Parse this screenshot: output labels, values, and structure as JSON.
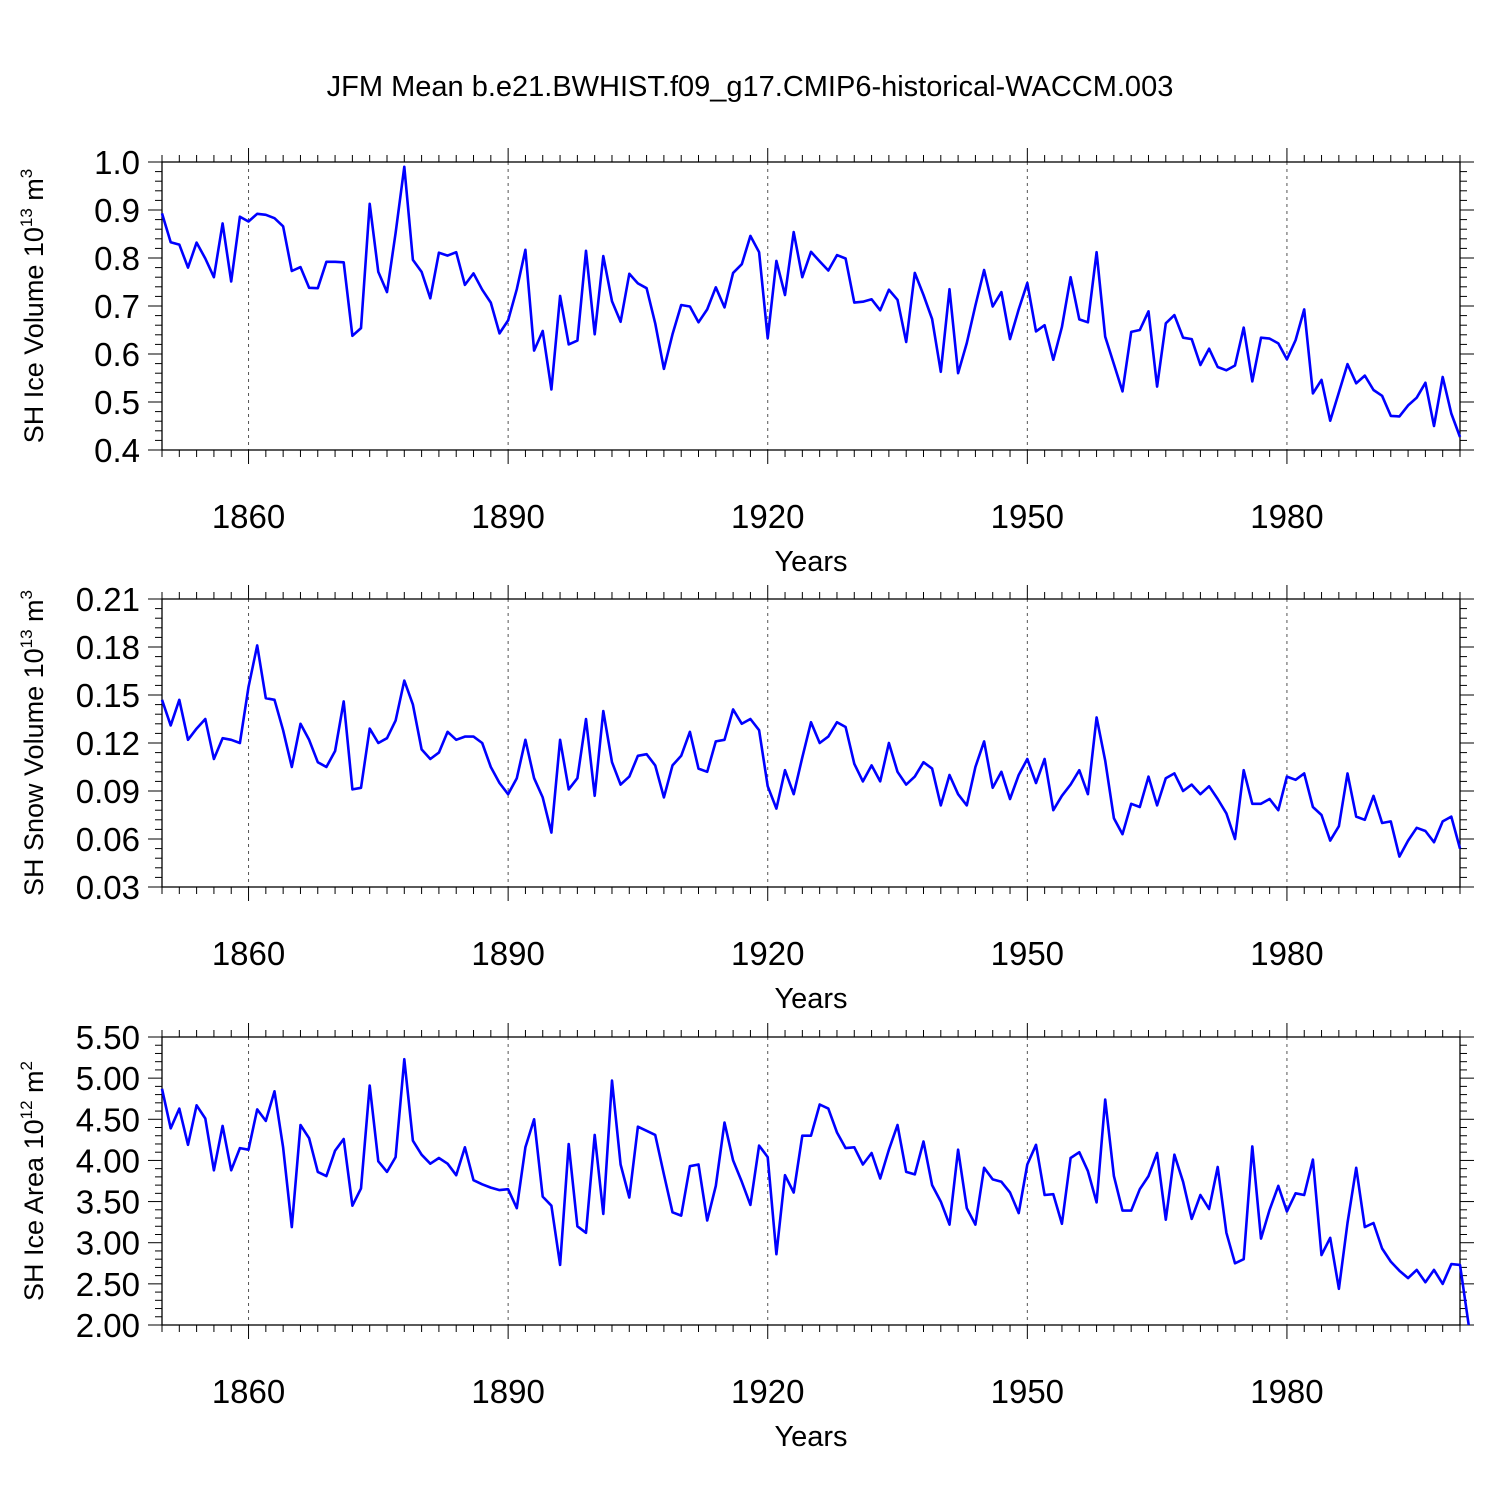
{
  "title": "JFM Mean b.e21.BWHIST.f09_g17.CMIP6-historical-WACCM.003",
  "colors": {
    "line": "#0000ff",
    "axis": "#000000",
    "grid": "#555555"
  },
  "chart_data": [
    {
      "type": "line",
      "ylabel": {
        "text": "SH Ice Volume 10",
        "exp": "13",
        "unit": " m",
        "unit_exp": "3"
      },
      "xlabel": "Years",
      "xlim": [
        1850,
        2000
      ],
      "ylim": [
        0.4,
        1.0
      ],
      "yticks": [
        "0.4",
        "0.5",
        "0.6",
        "0.7",
        "0.8",
        "0.9",
        "1.0"
      ],
      "xticks": [
        "1860",
        "1890",
        "1920",
        "1950",
        "1980"
      ],
      "grid": "x-dashed",
      "series": [
        {
          "x_start": 1850,
          "values": [
            0.893,
            0.833,
            0.828,
            0.78,
            0.832,
            0.799,
            0.76,
            0.872,
            0.751,
            0.886,
            0.876,
            0.892,
            0.89,
            0.883,
            0.866,
            0.773,
            0.781,
            0.738,
            0.737,
            0.792,
            0.792,
            0.791,
            0.638,
            0.654,
            0.913,
            0.771,
            0.729,
            0.852,
            0.99,
            0.796,
            0.771,
            0.716,
            0.811,
            0.805,
            0.812,
            0.744,
            0.768,
            0.734,
            0.707,
            0.643,
            0.67,
            0.735,
            0.817,
            0.607,
            0.648,
            0.526,
            0.721,
            0.62,
            0.628,
            0.815,
            0.641,
            0.804,
            0.71,
            0.667,
            0.767,
            0.747,
            0.737,
            0.664,
            0.569,
            0.641,
            0.702,
            0.699,
            0.666,
            0.693,
            0.739,
            0.697,
            0.769,
            0.787,
            0.846,
            0.812,
            0.633,
            0.794,
            0.723,
            0.854,
            0.76,
            0.813,
            0.793,
            0.774,
            0.806,
            0.799,
            0.707,
            0.709,
            0.714,
            0.691,
            0.734,
            0.713,
            0.625,
            0.769,
            0.723,
            0.673,
            0.563,
            0.735,
            0.56,
            0.623,
            0.701,
            0.775,
            0.699,
            0.729,
            0.631,
            0.693,
            0.748,
            0.647,
            0.66,
            0.588,
            0.656,
            0.76,
            0.672,
            0.666,
            0.812,
            0.636,
            0.579,
            0.522,
            0.646,
            0.65,
            0.689,
            0.532,
            0.664,
            0.681,
            0.634,
            0.631,
            0.577,
            0.611,
            0.573,
            0.566,
            0.576,
            0.655,
            0.543,
            0.634,
            0.632,
            0.622,
            0.589,
            0.629,
            0.693,
            0.518,
            0.546,
            0.461,
            0.52,
            0.579,
            0.539,
            0.555,
            0.525,
            0.513,
            0.471,
            0.47,
            0.493,
            0.509,
            0.54,
            0.45,
            0.552,
            0.476,
            0.427
          ]
        }
      ]
    },
    {
      "type": "line",
      "ylabel": {
        "text": "SH Snow Volume 10",
        "exp": "13",
        "unit": " m",
        "unit_exp": "3"
      },
      "xlabel": "Years",
      "xlim": [
        1850,
        2000
      ],
      "ylim": [
        0.03,
        0.21
      ],
      "yticks": [
        "0.03",
        "0.06",
        "0.09",
        "0.12",
        "0.15",
        "0.18",
        "0.21"
      ],
      "xticks": [
        "1860",
        "1890",
        "1920",
        "1950",
        "1980"
      ],
      "grid": "x-dashed",
      "series": [
        {
          "x_start": 1850,
          "values": [
            0.147,
            0.131,
            0.147,
            0.122,
            0.129,
            0.135,
            0.11,
            0.123,
            0.122,
            0.12,
            0.155,
            0.181,
            0.148,
            0.147,
            0.128,
            0.105,
            0.132,
            0.122,
            0.108,
            0.105,
            0.115,
            0.146,
            0.091,
            0.092,
            0.129,
            0.12,
            0.123,
            0.134,
            0.159,
            0.144,
            0.116,
            0.11,
            0.114,
            0.127,
            0.122,
            0.124,
            0.124,
            0.12,
            0.105,
            0.095,
            0.088,
            0.098,
            0.122,
            0.098,
            0.086,
            0.064,
            0.122,
            0.091,
            0.098,
            0.135,
            0.087,
            0.14,
            0.108,
            0.094,
            0.099,
            0.112,
            0.113,
            0.106,
            0.086,
            0.106,
            0.112,
            0.127,
            0.104,
            0.102,
            0.121,
            0.122,
            0.141,
            0.132,
            0.135,
            0.128,
            0.093,
            0.079,
            0.103,
            0.088,
            0.111,
            0.133,
            0.12,
            0.124,
            0.133,
            0.13,
            0.107,
            0.096,
            0.106,
            0.096,
            0.12,
            0.102,
            0.094,
            0.099,
            0.108,
            0.104,
            0.081,
            0.1,
            0.088,
            0.081,
            0.105,
            0.121,
            0.092,
            0.102,
            0.085,
            0.1,
            0.11,
            0.095,
            0.11,
            0.078,
            0.087,
            0.094,
            0.103,
            0.088,
            0.136,
            0.109,
            0.073,
            0.063,
            0.082,
            0.08,
            0.099,
            0.081,
            0.098,
            0.101,
            0.09,
            0.094,
            0.088,
            0.093,
            0.085,
            0.076,
            0.06,
            0.103,
            0.082,
            0.082,
            0.085,
            0.078,
            0.099,
            0.097,
            0.101,
            0.08,
            0.075,
            0.059,
            0.068,
            0.101,
            0.074,
            0.072,
            0.087,
            0.07,
            0.071,
            0.049,
            0.059,
            0.067,
            0.065,
            0.058,
            0.071,
            0.074,
            0.054
          ]
        }
      ]
    },
    {
      "type": "line",
      "ylabel": {
        "text": "SH Ice Area 10",
        "exp": "12",
        "unit": " m",
        "unit_exp": "2"
      },
      "xlabel": "Years",
      "xlim": [
        1850,
        2000
      ],
      "ylim": [
        2.0,
        5.5
      ],
      "yticks": [
        "2.00",
        "2.50",
        "3.00",
        "3.50",
        "4.00",
        "4.50",
        "5.00",
        "5.50"
      ],
      "xticks": [
        "1860",
        "1890",
        "1920",
        "1950",
        "1980"
      ],
      "grid": "x-dashed",
      "series": [
        {
          "x_start": 1850,
          "values": [
            4.87,
            4.39,
            4.63,
            4.19,
            4.67,
            4.51,
            3.88,
            4.42,
            3.88,
            4.15,
            4.13,
            4.62,
            4.48,
            4.84,
            4.16,
            3.19,
            4.43,
            4.27,
            3.86,
            3.81,
            4.12,
            4.26,
            3.45,
            3.66,
            4.91,
            3.99,
            3.86,
            4.04,
            5.23,
            4.24,
            4.07,
            3.96,
            4.03,
            3.96,
            3.82,
            4.16,
            3.76,
            3.71,
            3.67,
            3.64,
            3.65,
            3.42,
            4.16,
            4.5,
            3.56,
            3.45,
            2.73,
            4.2,
            3.2,
            3.12,
            4.31,
            3.35,
            4.97,
            3.95,
            3.55,
            4.41,
            4.36,
            4.31,
            3.83,
            3.37,
            3.33,
            3.93,
            3.95,
            3.27,
            3.69,
            4.46,
            4.0,
            3.74,
            3.46,
            4.18,
            4.04,
            2.86,
            3.82,
            3.61,
            4.3,
            4.3,
            4.68,
            4.63,
            4.34,
            4.15,
            4.16,
            3.95,
            4.09,
            3.78,
            4.13,
            4.43,
            3.86,
            3.83,
            4.23,
            3.7,
            3.5,
            3.22,
            4.13,
            3.42,
            3.22,
            3.91,
            3.77,
            3.74,
            3.61,
            3.36,
            3.95,
            4.19,
            3.58,
            3.59,
            3.23,
            4.03,
            4.1,
            3.87,
            3.49,
            4.74,
            3.81,
            3.39,
            3.39,
            3.65,
            3.81,
            4.09,
            3.28,
            4.07,
            3.74,
            3.29,
            3.58,
            3.41,
            3.92,
            3.12,
            2.75,
            2.8,
            4.17,
            3.05,
            3.4,
            3.69,
            3.38,
            3.6,
            3.58,
            4.01,
            2.85,
            3.06,
            2.44,
            3.24,
            3.91,
            3.19,
            3.24,
            2.93,
            2.77,
            2.66,
            2.57,
            2.67,
            2.52,
            2.67,
            2.5,
            2.74,
            2.73,
            2.0
          ]
        }
      ]
    }
  ]
}
